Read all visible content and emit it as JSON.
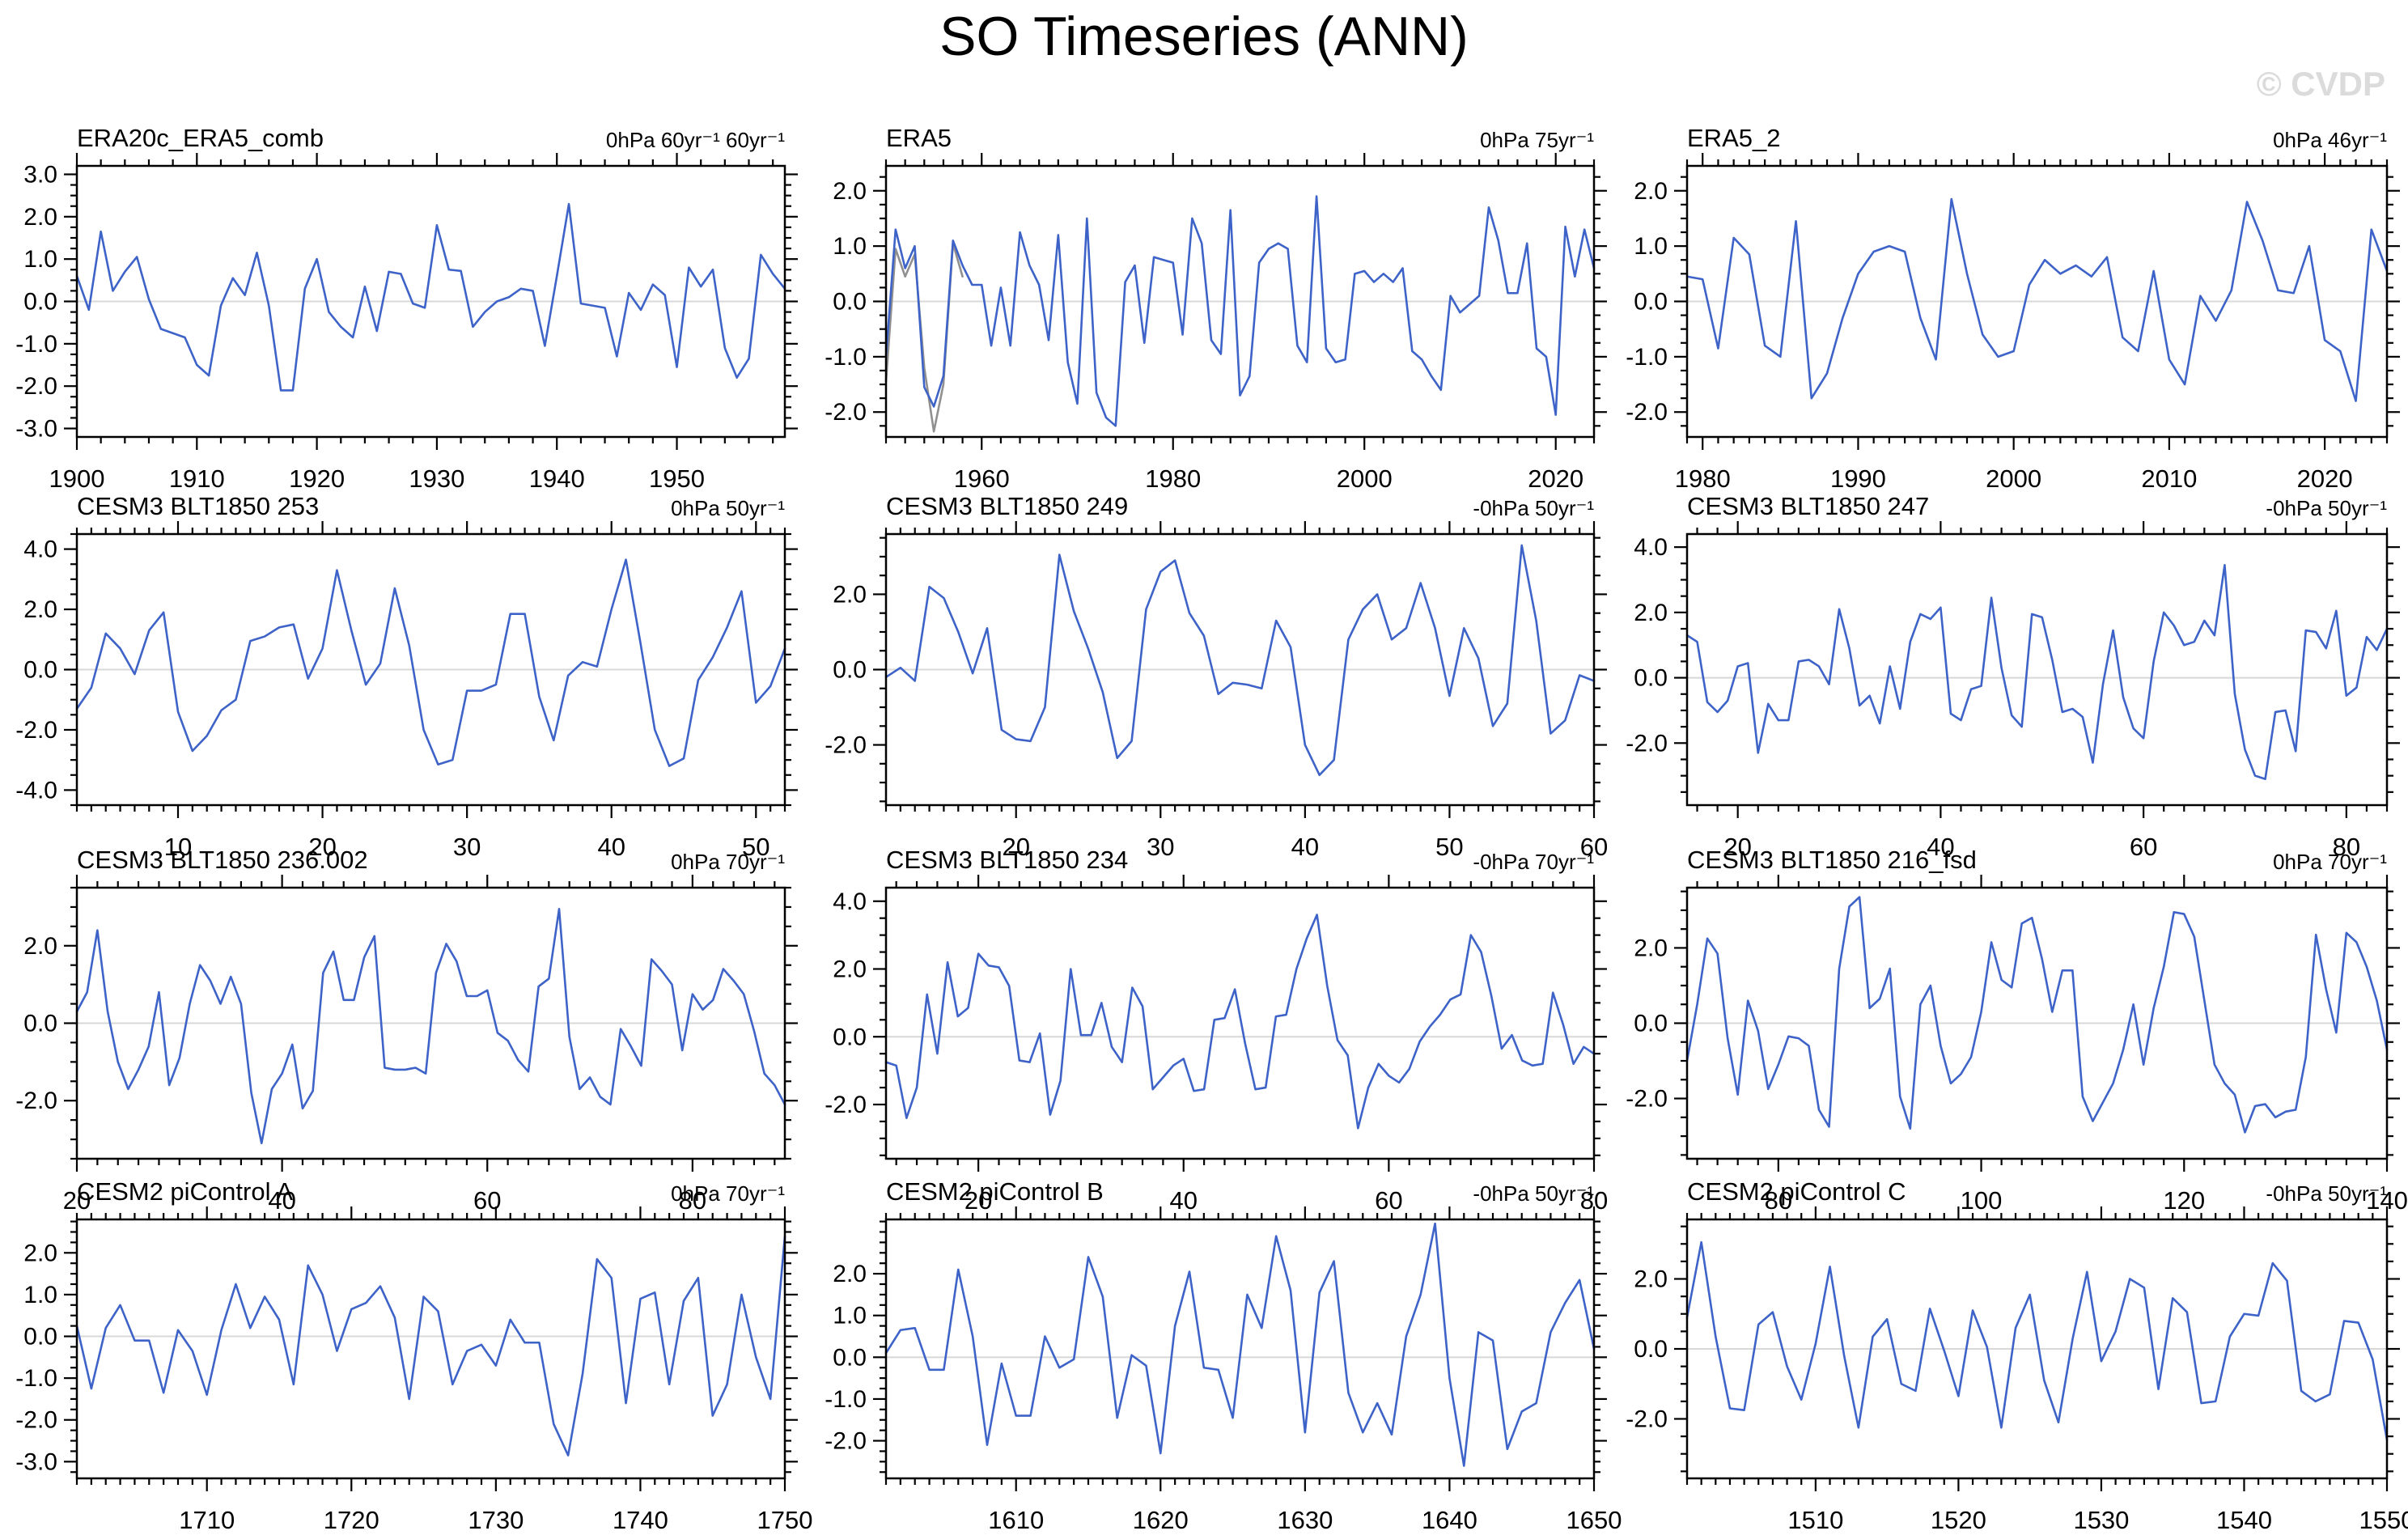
{
  "page_title": "SO Timeseries (ANN)",
  "watermark": "© CVDP",
  "colors": {
    "line": "#3E63C8",
    "line_secondary": "#909090",
    "zero_line": "#D8D8D8",
    "axis": "#000000",
    "watermark": "#DBDBDB"
  },
  "chart_data": [
    {
      "type": "line",
      "title": "ERA20c_ERA5_comb",
      "units_label": "0hPa 60yr⁻¹ 60yr⁻¹",
      "x_start": 1900,
      "x_step": 1,
      "xlim": [
        1900,
        1959
      ],
      "xticks": [
        1900,
        1910,
        1920,
        1930,
        1940,
        1950
      ],
      "x_minor_step": 2,
      "ylim": [
        -3.2,
        3.2
      ],
      "yticks": [
        3.0,
        2.0,
        1.0,
        0.0,
        -1.0,
        -2.0,
        -3.0
      ],
      "y_minor_step": 0.25,
      "grid": false,
      "legend": "none",
      "values": [
        0.6,
        -0.2,
        1.65,
        0.25,
        0.7,
        1.05,
        0.05,
        -0.65,
        -0.75,
        -0.85,
        -1.5,
        -1.75,
        -0.1,
        0.55,
        0.15,
        1.15,
        -0.1,
        -2.1,
        -2.1,
        0.3,
        1.0,
        -0.25,
        -0.6,
        -0.85,
        0.35,
        -0.7,
        0.7,
        0.65,
        -0.05,
        -0.15,
        1.8,
        0.75,
        0.72,
        -0.6,
        -0.25,
        0.0,
        0.1,
        0.3,
        0.25,
        -1.05,
        0.6,
        2.3,
        -0.05,
        -0.1,
        -0.15,
        -1.3,
        0.2,
        -0.2,
        0.4,
        0.15,
        -1.55,
        0.8,
        0.35,
        0.75,
        -1.1,
        -1.8,
        -1.35,
        1.1,
        0.65,
        0.3
      ]
    },
    {
      "type": "line",
      "title": "ERA5",
      "units_label": "0hPa 75yr⁻¹",
      "x_start": 1950,
      "x_step": 1,
      "xlim": [
        1950,
        2024
      ],
      "xticks": [
        1960,
        1980,
        2000,
        2020
      ],
      "x_minor_step": 2,
      "ylim": [
        -2.45,
        2.45
      ],
      "yticks": [
        2.0,
        1.0,
        0.0,
        -1.0,
        -2.0
      ],
      "y_minor_step": 0.25,
      "grid": false,
      "legend": "none",
      "values": [
        -1.0,
        1.3,
        0.6,
        1.0,
        -1.55,
        -1.9,
        -1.35,
        1.1,
        0.65,
        0.3,
        0.3,
        -0.8,
        0.25,
        -0.8,
        1.25,
        0.65,
        0.3,
        -0.7,
        1.2,
        -1.1,
        -1.85,
        1.5,
        -1.65,
        -2.1,
        -2.25,
        0.35,
        0.65,
        -0.75,
        0.8,
        0.75,
        0.7,
        -0.6,
        1.5,
        1.05,
        -0.7,
        -0.95,
        1.65,
        -1.7,
        -1.35,
        0.7,
        0.95,
        1.05,
        0.95,
        -0.8,
        -1.1,
        1.9,
        -0.85,
        -1.1,
        -1.05,
        0.5,
        0.55,
        0.35,
        0.5,
        0.35,
        0.6,
        -0.9,
        -1.05,
        -1.35,
        -1.6,
        0.1,
        -0.2,
        -0.05,
        0.1,
        1.7,
        1.1,
        0.15,
        0.15,
        1.05,
        -0.85,
        -1.0,
        -2.05,
        1.35,
        0.45,
        1.3,
        0.6
      ],
      "secondary_series": {
        "name": "overlap segment",
        "x_start": 1950,
        "values": [
          -1.45,
          0.95,
          0.45,
          0.85,
          -1.2,
          -2.35,
          -1.5,
          1.05,
          0.45
        ]
      }
    },
    {
      "type": "line",
      "title": "ERA5_2",
      "units_label": "0hPa 46yr⁻¹",
      "x_start": 1979,
      "x_step": 1,
      "xlim": [
        1979,
        2024
      ],
      "xticks": [
        1980,
        1990,
        2000,
        2010,
        2020
      ],
      "x_minor_step": 1,
      "ylim": [
        -2.45,
        2.45
      ],
      "yticks": [
        2.0,
        1.0,
        0.0,
        -1.0,
        -2.0
      ],
      "y_minor_step": 0.25,
      "grid": false,
      "legend": "none",
      "values": [
        0.45,
        0.4,
        -0.85,
        1.15,
        0.85,
        -0.8,
        -1.0,
        1.45,
        -1.75,
        -1.3,
        -0.3,
        0.5,
        0.9,
        1.0,
        0.9,
        -0.3,
        -1.05,
        1.85,
        0.5,
        -0.6,
        -1.0,
        -0.9,
        0.3,
        0.75,
        0.5,
        0.65,
        0.45,
        0.8,
        -0.65,
        -0.9,
        0.55,
        -1.05,
        -1.5,
        0.1,
        -0.35,
        0.2,
        1.8,
        1.1,
        0.2,
        0.15,
        1.0,
        -0.7,
        -0.9,
        -1.8,
        1.3,
        0.55
      ]
    },
    {
      "type": "line",
      "title": "CESM3 BLT1850 253",
      "units_label": "0hPa 50yr⁻¹",
      "x_start": 3,
      "x_step": 1,
      "xlim": [
        3,
        52
      ],
      "xticks": [
        10,
        20,
        30,
        40,
        50
      ],
      "x_minor_step": 1,
      "ylim": [
        -4.5,
        4.5
      ],
      "yticks": [
        4.0,
        2.0,
        0.0,
        -2.0,
        -4.0
      ],
      "y_minor_step": 0.5,
      "grid": false,
      "legend": "none",
      "values": [
        -1.3,
        -0.6,
        1.2,
        0.7,
        -0.15,
        1.3,
        1.9,
        -1.4,
        -2.7,
        -2.2,
        -1.35,
        -1.0,
        0.95,
        1.1,
        1.4,
        1.5,
        -0.3,
        0.7,
        3.3,
        1.3,
        -0.5,
        0.2,
        2.7,
        0.8,
        -2.0,
        -3.15,
        -3.0,
        -0.7,
        -0.7,
        -0.5,
        1.85,
        1.85,
        -0.9,
        -2.35,
        -0.2,
        0.25,
        0.1,
        2.0,
        3.65,
        0.9,
        -2.0,
        -3.2,
        -2.95,
        -0.35,
        0.4,
        1.4,
        2.6,
        -1.1,
        -0.55,
        0.7
      ]
    },
    {
      "type": "line",
      "title": "CESM3 BLT1850 249",
      "units_label": "-0hPa 50yr⁻¹",
      "x_start": 11,
      "x_step": 1,
      "xlim": [
        11,
        60
      ],
      "xticks": [
        20,
        30,
        40,
        50,
        60
      ],
      "x_minor_step": 1,
      "ylim": [
        -3.6,
        3.6
      ],
      "yticks": [
        2.0,
        0.0,
        -2.0
      ],
      "y_minor_step": 0.5,
      "grid": false,
      "legend": "none",
      "values": [
        -0.2,
        0.05,
        -0.3,
        2.2,
        1.9,
        1.0,
        -0.1,
        1.1,
        -1.6,
        -1.85,
        -1.9,
        -1.0,
        3.05,
        1.55,
        0.55,
        -0.6,
        -2.35,
        -1.9,
        1.6,
        2.6,
        2.9,
        1.5,
        0.9,
        -0.65,
        -0.35,
        -0.4,
        -0.5,
        1.3,
        0.6,
        -2.0,
        -2.8,
        -2.4,
        0.8,
        1.6,
        2.0,
        0.8,
        1.1,
        2.3,
        1.1,
        -0.7,
        1.1,
        0.3,
        -1.5,
        -0.9,
        3.3,
        1.3,
        -1.7,
        -1.35,
        -0.15,
        -0.3
      ]
    },
    {
      "type": "line",
      "title": "CESM3 BLT1850 247",
      "units_label": "-0hPa 50yr⁻¹",
      "x_start": 15,
      "x_step": 1,
      "xlim": [
        15,
        84
      ],
      "xticks": [
        20,
        40,
        60,
        80
      ],
      "x_minor_step": 2,
      "ylim": [
        -3.9,
        4.4
      ],
      "yticks": [
        4.0,
        2.0,
        0.0,
        -2.0
      ],
      "y_minor_step": 0.5,
      "grid": false,
      "legend": "none",
      "values": [
        1.3,
        1.1,
        -0.75,
        -1.05,
        -0.7,
        0.35,
        0.45,
        -2.3,
        -0.8,
        -1.3,
        -1.3,
        0.5,
        0.55,
        0.35,
        -0.2,
        2.1,
        0.9,
        -0.85,
        -0.55,
        -1.4,
        0.35,
        -0.95,
        1.1,
        1.95,
        1.8,
        2.15,
        -1.1,
        -1.3,
        -0.35,
        -0.25,
        2.45,
        0.3,
        -1.15,
        -1.5,
        1.95,
        1.85,
        0.55,
        -1.05,
        -0.95,
        -1.2,
        -2.6,
        -0.2,
        1.45,
        -0.6,
        -1.55,
        -1.85,
        0.5,
        2.0,
        1.6,
        1.0,
        1.1,
        1.75,
        1.3,
        3.45,
        -0.5,
        -2.2,
        -3.0,
        -3.1,
        -1.05,
        -1.0,
        -2.25,
        1.45,
        1.4,
        0.9,
        2.05,
        -0.55,
        -0.3,
        1.25,
        0.85,
        1.5
      ]
    },
    {
      "type": "line",
      "title": "CESM3 BLT1850 236.002",
      "units_label": "0hPa 70yr⁻¹",
      "x_start": 20,
      "x_step": 1,
      "xlim": [
        20,
        89
      ],
      "xticks": [
        20,
        40,
        60,
        80
      ],
      "x_minor_step": 2,
      "ylim": [
        -3.5,
        3.5
      ],
      "yticks": [
        2.0,
        0.0,
        -2.0
      ],
      "y_minor_step": 0.5,
      "grid": false,
      "legend": "none",
      "values": [
        0.3,
        0.8,
        2.4,
        0.3,
        -1.0,
        -1.7,
        -1.2,
        -0.6,
        0.8,
        -1.6,
        -0.9,
        0.5,
        1.5,
        1.1,
        0.5,
        1.2,
        0.5,
        -1.8,
        -3.1,
        -1.7,
        -1.3,
        -0.55,
        -2.2,
        -1.75,
        1.3,
        1.85,
        0.6,
        0.6,
        1.7,
        2.25,
        -1.15,
        -1.2,
        -1.2,
        -1.15,
        -1.3,
        1.3,
        2.05,
        1.6,
        0.7,
        0.7,
        0.85,
        -0.25,
        -0.45,
        -0.95,
        -1.25,
        0.95,
        1.15,
        2.95,
        -0.35,
        -1.7,
        -1.4,
        -1.9,
        -2.1,
        -0.15,
        -0.6,
        -1.1,
        1.65,
        1.35,
        1.0,
        -0.7,
        0.75,
        0.35,
        0.6,
        1.4,
        1.1,
        0.75,
        -0.2,
        -1.3,
        -1.6,
        -2.1
      ]
    },
    {
      "type": "line",
      "title": "CESM3 BLT1850 234",
      "units_label": "-0hPa 70yr⁻¹",
      "x_start": 11,
      "x_step": 1,
      "xlim": [
        11,
        80
      ],
      "xticks": [
        20,
        40,
        60,
        80
      ],
      "x_minor_step": 2,
      "ylim": [
        -3.6,
        4.4
      ],
      "yticks": [
        4.0,
        2.0,
        0.0,
        -2.0
      ],
      "y_minor_step": 0.5,
      "grid": false,
      "legend": "none",
      "values": [
        -0.75,
        -0.85,
        -2.4,
        -1.5,
        1.25,
        -0.5,
        2.2,
        0.6,
        0.85,
        2.45,
        2.1,
        2.05,
        1.5,
        -0.7,
        -0.75,
        0.1,
        -2.3,
        -1.3,
        2.0,
        0.05,
        0.05,
        1.0,
        -0.3,
        -0.75,
        1.45,
        0.9,
        -1.55,
        -1.2,
        -0.85,
        -0.65,
        -1.6,
        -1.55,
        0.5,
        0.55,
        1.4,
        -0.2,
        -1.55,
        -1.5,
        0.6,
        0.65,
        2.0,
        2.9,
        3.6,
        1.5,
        -0.1,
        -0.55,
        -2.7,
        -1.5,
        -0.8,
        -1.15,
        -1.35,
        -0.95,
        -0.15,
        0.3,
        0.65,
        1.1,
        1.25,
        3.0,
        2.5,
        1.2,
        -0.35,
        0.05,
        -0.7,
        -0.85,
        -0.8,
        1.3,
        0.35,
        -0.8,
        -0.3,
        -0.5
      ]
    },
    {
      "type": "line",
      "title": "CESM3 BLT1850 216_fsd",
      "units_label": "0hPa 70yr⁻¹",
      "x_start": 71,
      "x_step": 1,
      "xlim": [
        71,
        140
      ],
      "xticks": [
        80,
        100,
        120,
        140
      ],
      "x_minor_step": 2,
      "ylim": [
        -3.6,
        3.6
      ],
      "yticks": [
        2.0,
        0.0,
        -2.0
      ],
      "y_minor_step": 0.5,
      "grid": false,
      "legend": "none",
      "values": [
        -1.0,
        0.5,
        2.25,
        1.85,
        -0.4,
        -1.9,
        0.6,
        -0.2,
        -1.75,
        -1.1,
        -0.35,
        -0.4,
        -0.6,
        -2.3,
        -2.75,
        1.45,
        3.1,
        3.35,
        0.4,
        0.65,
        1.45,
        -1.95,
        -2.8,
        0.5,
        1.0,
        -0.6,
        -1.6,
        -1.35,
        -0.9,
        0.3,
        2.15,
        1.15,
        0.95,
        2.65,
        2.8,
        1.7,
        0.3,
        1.4,
        1.4,
        -1.95,
        -2.6,
        -2.1,
        -1.6,
        -0.7,
        0.5,
        -1.1,
        0.4,
        1.5,
        2.95,
        2.9,
        2.3,
        0.6,
        -1.1,
        -1.6,
        -1.9,
        -2.9,
        -2.2,
        -2.15,
        -2.5,
        -2.35,
        -2.3,
        -0.9,
        2.35,
        0.9,
        -0.25,
        2.4,
        2.15,
        1.5,
        0.6,
        -0.7
      ]
    },
    {
      "type": "line",
      "title": "CESM2 piControl A",
      "units_label": "0hPa 70yr⁻¹",
      "x_start": 1701,
      "x_step": 1,
      "xlim": [
        1701,
        1750
      ],
      "xticks": [
        1710,
        1720,
        1730,
        1740,
        1750
      ],
      "x_minor_step": 1,
      "ylim": [
        -3.4,
        2.8
      ],
      "yticks": [
        2.0,
        1.0,
        0.0,
        -1.0,
        -2.0,
        -3.0
      ],
      "y_minor_step": 0.25,
      "grid": false,
      "legend": "none",
      "values": [
        0.25,
        -1.25,
        0.2,
        0.75,
        -0.1,
        -0.1,
        -1.35,
        0.15,
        -0.35,
        -1.4,
        0.15,
        1.25,
        0.2,
        0.95,
        0.4,
        -1.15,
        1.7,
        1.0,
        -0.35,
        0.65,
        0.8,
        1.2,
        0.45,
        -1.5,
        0.95,
        0.6,
        -1.15,
        -0.35,
        -0.2,
        -0.7,
        0.4,
        -0.15,
        -0.15,
        -2.1,
        -2.85,
        -0.9,
        1.85,
        1.4,
        -1.6,
        0.9,
        1.05,
        -1.15,
        0.85,
        1.4,
        -1.9,
        -1.15,
        1.0,
        -0.5,
        -1.5,
        2.4
      ]
    },
    {
      "type": "line",
      "title": "CESM2 piControl B",
      "units_label": "-0hPa 50yr⁻¹",
      "x_start": 1601,
      "x_step": 1,
      "xlim": [
        1601,
        1650
      ],
      "xticks": [
        1610,
        1620,
        1630,
        1640,
        1650
      ],
      "x_minor_step": 1,
      "ylim": [
        -2.9,
        3.3
      ],
      "yticks": [
        2.0,
        1.0,
        0.0,
        -1.0,
        -2.0
      ],
      "y_minor_step": 0.25,
      "grid": false,
      "legend": "none",
      "values": [
        0.1,
        0.65,
        0.7,
        -0.3,
        -0.3,
        2.1,
        0.5,
        -2.1,
        -0.15,
        -1.4,
        -1.4,
        0.5,
        -0.25,
        -0.05,
        2.4,
        1.45,
        -1.45,
        0.05,
        -0.2,
        -2.3,
        0.75,
        2.05,
        -0.25,
        -0.3,
        -1.45,
        1.5,
        0.7,
        2.9,
        1.6,
        -1.8,
        1.55,
        2.3,
        -0.85,
        -1.8,
        -1.1,
        -1.85,
        0.5,
        1.5,
        3.2,
        -0.5,
        -2.6,
        0.6,
        0.4,
        -2.2,
        -1.3,
        -1.1,
        0.6,
        1.3,
        1.85,
        0.2
      ]
    },
    {
      "type": "line",
      "title": "CESM2 piControl C",
      "units_label": "-0hPa 50yr⁻¹",
      "x_start": 1501,
      "x_step": 1,
      "xlim": [
        1501,
        1550
      ],
      "xticks": [
        1510,
        1520,
        1530,
        1540,
        1550
      ],
      "x_minor_step": 1,
      "ylim": [
        -3.7,
        3.7
      ],
      "yticks": [
        2.0,
        0.0,
        -2.0
      ],
      "y_minor_step": 0.5,
      "grid": false,
      "legend": "none",
      "values": [
        0.9,
        3.05,
        0.35,
        -1.7,
        -1.75,
        0.7,
        1.05,
        -0.5,
        -1.45,
        0.15,
        2.35,
        -0.2,
        -2.25,
        0.35,
        0.85,
        -1.0,
        -1.2,
        1.15,
        -0.05,
        -1.35,
        1.1,
        0.05,
        -2.25,
        0.6,
        1.55,
        -0.9,
        -2.1,
        0.3,
        2.2,
        -0.35,
        0.5,
        2.0,
        1.75,
        -1.15,
        1.45,
        1.05,
        -1.55,
        -1.5,
        0.35,
        1.0,
        0.95,
        2.45,
        1.95,
        -1.2,
        -1.5,
        -1.3,
        0.8,
        0.75,
        -0.3,
        -2.6
      ]
    }
  ]
}
